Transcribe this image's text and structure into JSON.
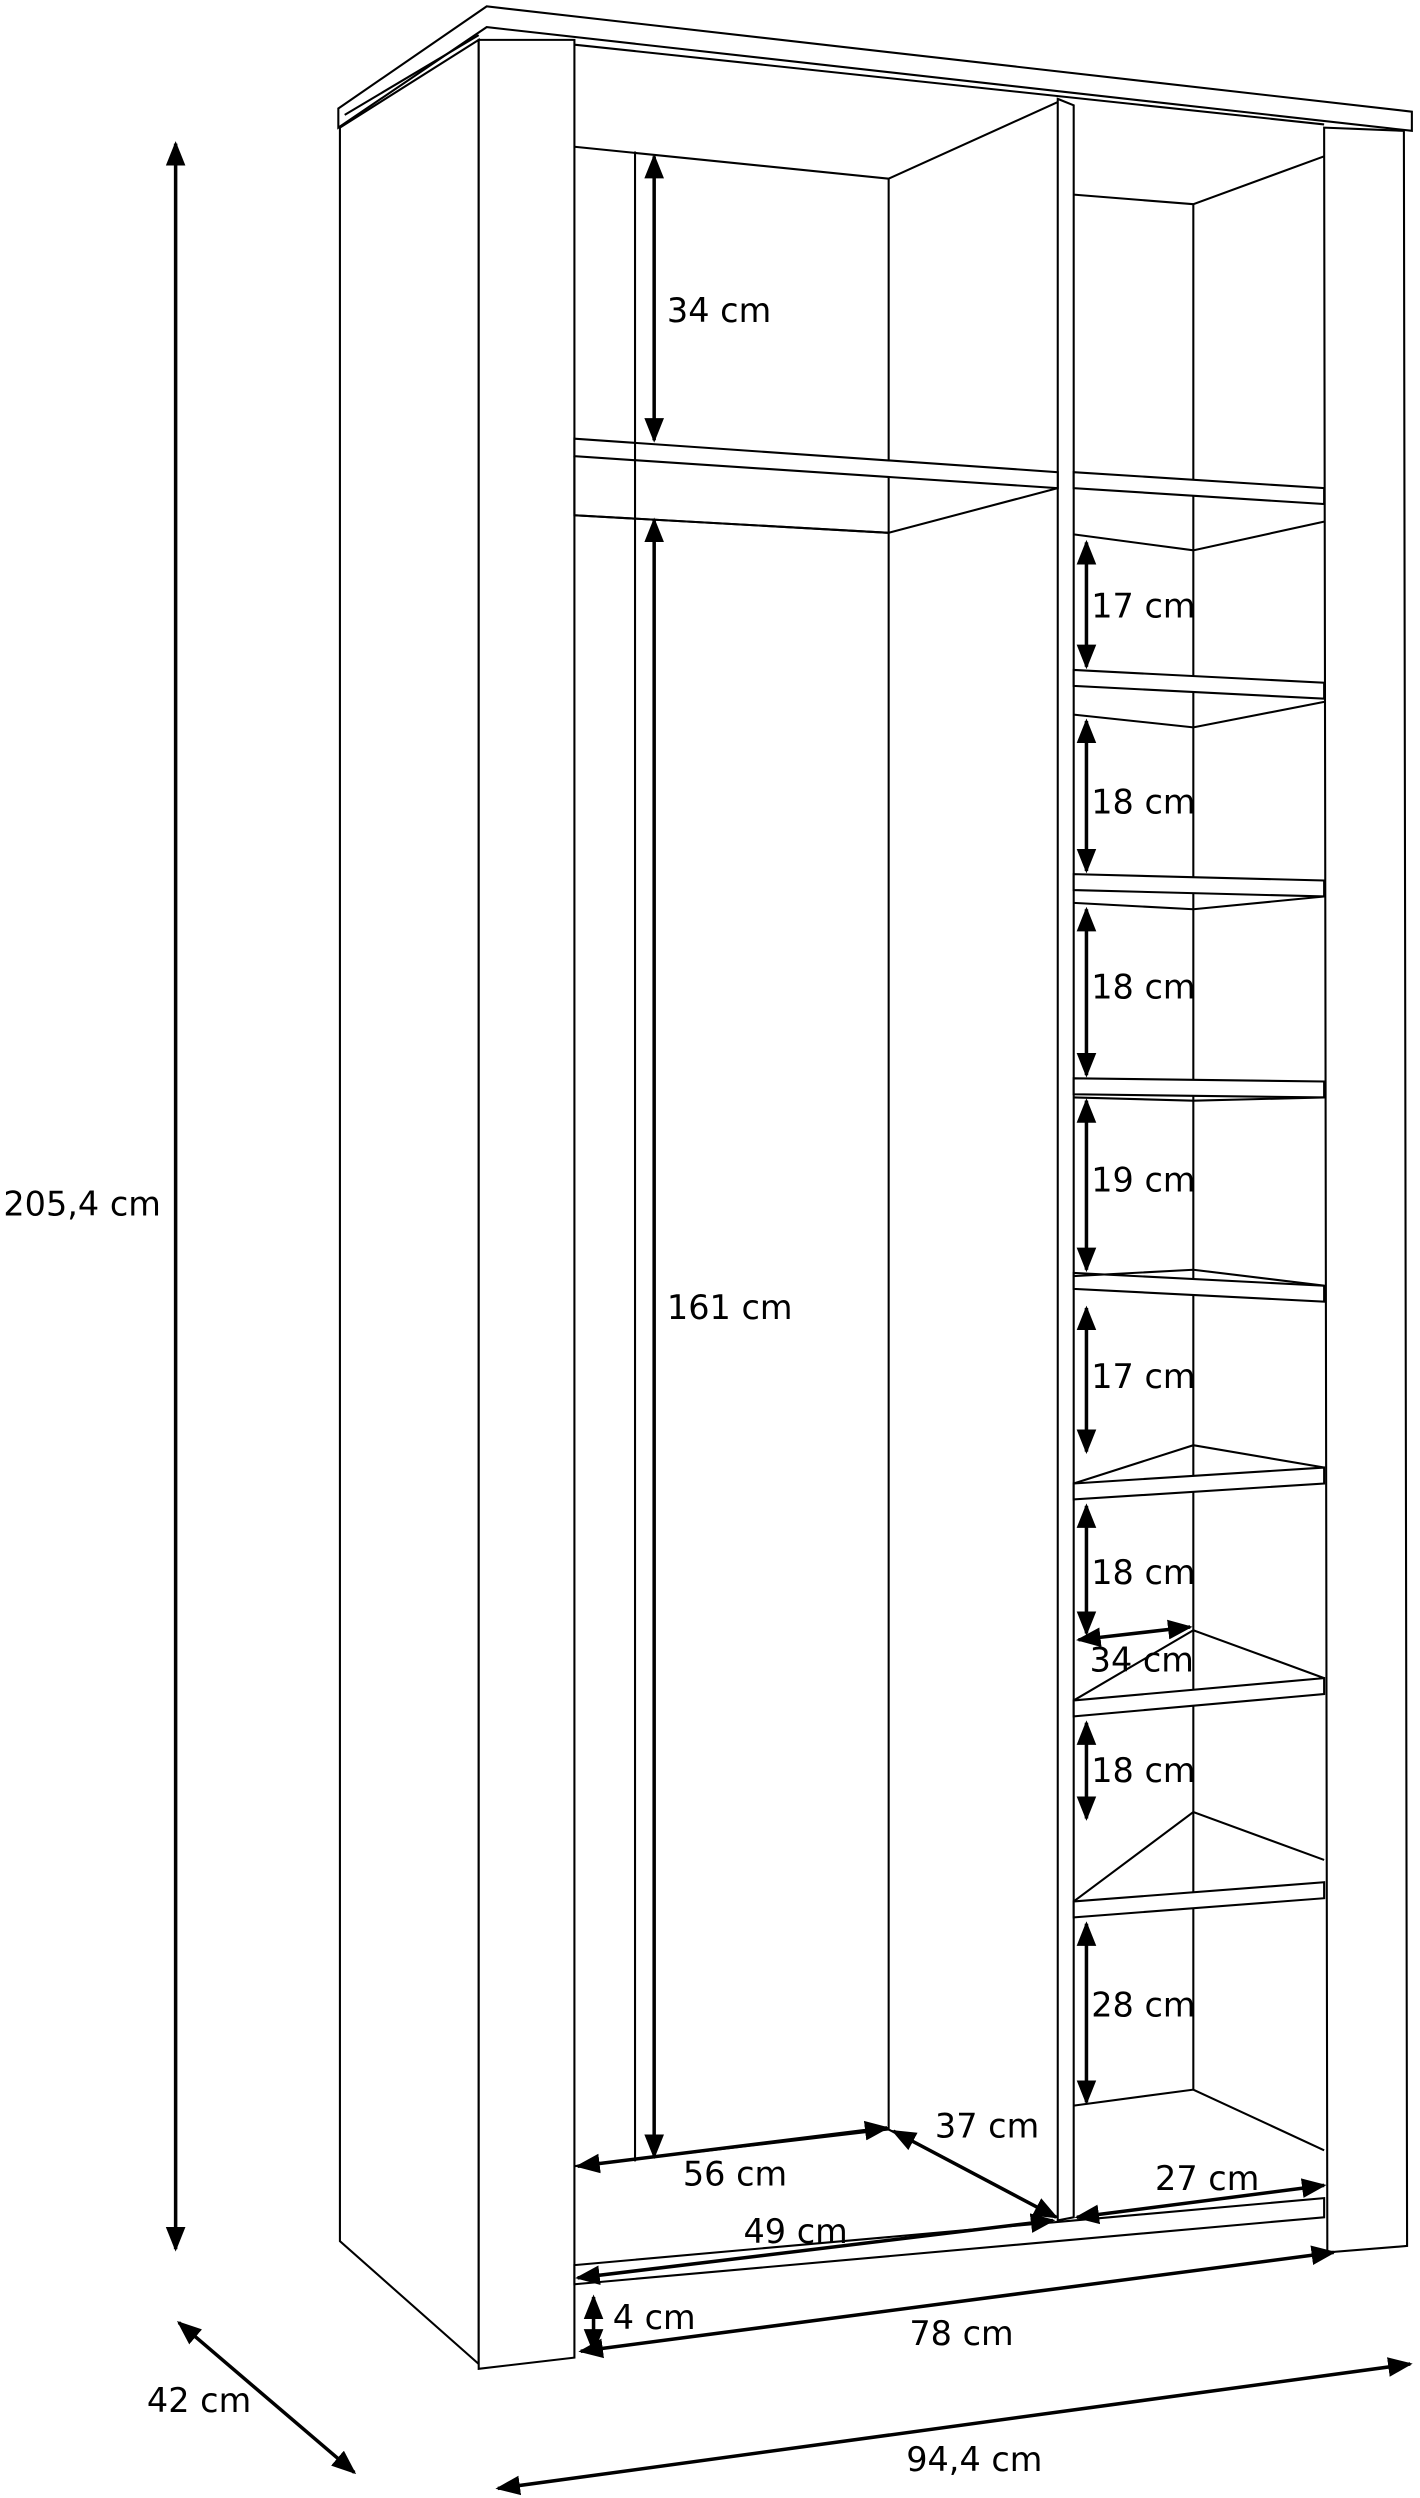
{
  "dimensions": {
    "total_height": "205,4 cm",
    "top_compartment_height": "34 cm",
    "hanging_height": "161 cm",
    "shelf_gaps": [
      "17 cm",
      "18 cm",
      "18 cm",
      "19 cm",
      "17 cm",
      "18 cm",
      "18 cm",
      "28 cm"
    ],
    "shelf_depth": "34 cm",
    "left_inner_depth": "37 cm",
    "left_bottom_width": "56 cm",
    "right_bottom_width": "27 cm",
    "left_inner_width": "49 cm",
    "plinth_height": "4 cm",
    "inner_width": "78 cm",
    "total_depth": "42 cm",
    "total_width": "94,4 cm"
  },
  "colors": {
    "line": "#000000",
    "background": "#ffffff"
  }
}
